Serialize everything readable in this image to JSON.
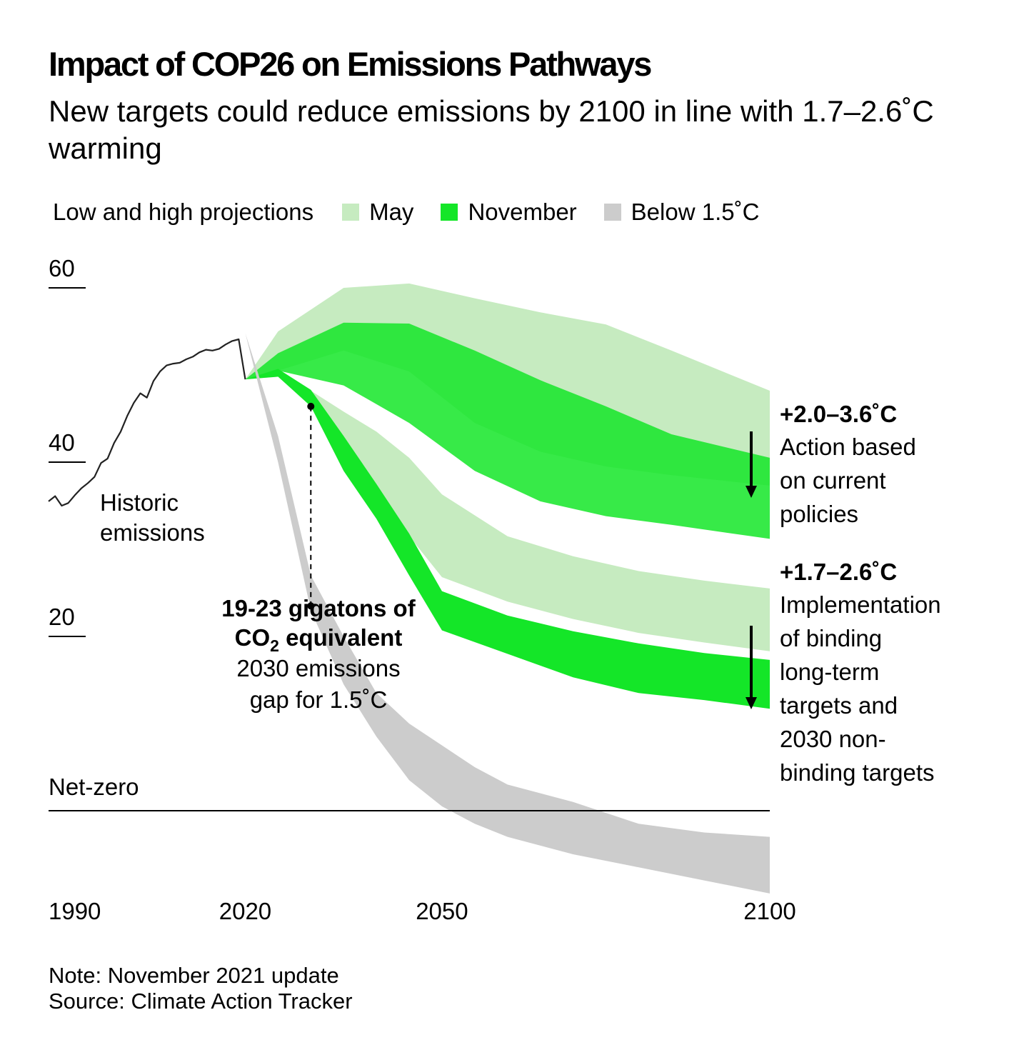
{
  "chart_data": {
    "type": "area",
    "title": "Impact of COP26 on Emissions Pathways",
    "subtitle": "New targets could reduce emissions by 2100 in line with 1.7–2.6˚C warming",
    "legend": {
      "title": "Low and high projections",
      "items": [
        {
          "name": "May",
          "color": "#c6ebc0"
        },
        {
          "name": "November",
          "color": "#14e628"
        },
        {
          "name": "Below 1.5˚C",
          "color": "#cccccc"
        }
      ]
    },
    "y_ticks": [
      "60",
      "40",
      "20"
    ],
    "y_tick_values": [
      60,
      40,
      20
    ],
    "x_ticks": [
      "1990",
      "2020",
      "2050",
      "2100"
    ],
    "x_tick_values": [
      1990,
      2020,
      2050,
      2100
    ],
    "xlim": [
      1990,
      2100
    ],
    "ylim": [
      -10,
      60
    ],
    "unit": "Gt CO2e",
    "net_zero_label": "Net-zero",
    "historic": {
      "label_line1": "Historic",
      "label_line2": "emissions",
      "x": [
        1990,
        1991,
        1992,
        1993,
        1994,
        1995,
        1996,
        1997,
        1998,
        1999,
        2000,
        2001,
        2002,
        2003,
        2004,
        2005,
        2006,
        2007,
        2008,
        2009,
        2010,
        2011,
        2012,
        2013,
        2014,
        2015,
        2016,
        2017,
        2018,
        2019,
        2020
      ],
      "y": [
        35.5,
        36.1,
        35.0,
        35.3,
        36.2,
        37.0,
        37.6,
        38.3,
        39.9,
        40.4,
        42.2,
        43.5,
        45.3,
        46.8,
        47.9,
        47.4,
        49.3,
        50.4,
        51.1,
        51.3,
        51.4,
        51.8,
        52.1,
        52.6,
        52.9,
        52.8,
        53.0,
        53.5,
        53.9,
        54.1,
        49.5
      ]
    },
    "bands": [
      {
        "name": "May",
        "scenario": "current policies",
        "color": "#c6ebc0",
        "x": [
          2020,
          2025,
          2035,
          2045,
          2055,
          2065,
          2075,
          2085,
          2100
        ],
        "upper": [
          49.5,
          55,
          60,
          60.5,
          58.8,
          57.2,
          55.8,
          52.8,
          48.2
        ],
        "lower": [
          49.5,
          50.5,
          52.8,
          50.4,
          44.5,
          41.2,
          39.5,
          38.5,
          37.3
        ]
      },
      {
        "name": "November",
        "scenario": "current policies",
        "color": "#14e628",
        "opacity": 0.85,
        "x": [
          2020,
          2025,
          2035,
          2045,
          2055,
          2065,
          2075,
          2085,
          2100
        ],
        "upper": [
          49.5,
          52.5,
          56,
          55.9,
          52.8,
          49.4,
          46.4,
          43.2,
          40.5
        ],
        "lower": [
          49.5,
          50.5,
          48.8,
          44.5,
          39.0,
          35.5,
          33.8,
          32.8,
          31.2
        ]
      },
      {
        "name": "May",
        "scenario": "binding long-term and 2030 non-binding targets",
        "color": "#c6ebc0",
        "x": [
          2020,
          2025,
          2030,
          2035,
          2040,
          2045,
          2050,
          2060,
          2070,
          2080,
          2090,
          2100
        ],
        "upper": [
          49.5,
          50.5,
          48.2,
          45.8,
          43.5,
          40.5,
          36.3,
          31.5,
          29.2,
          27.5,
          26.4,
          25.5
        ],
        "lower": [
          49.5,
          49.8,
          46.5,
          42.0,
          37.0,
          31.5,
          26.8,
          24.0,
          22.0,
          20.4,
          19.3,
          18.3
        ]
      },
      {
        "name": "November",
        "scenario": "binding long-term and 2030 non-binding targets",
        "color": "#14e628",
        "x": [
          2020,
          2025,
          2030,
          2035,
          2040,
          2045,
          2050,
          2060,
          2070,
          2080,
          2090,
          2100
        ],
        "upper": [
          49.5,
          50.7,
          48.3,
          43.0,
          37.5,
          31.8,
          25.2,
          22.4,
          20.6,
          19.2,
          18.1,
          17.3
        ],
        "lower": [
          49.5,
          49.8,
          46.4,
          39.0,
          33.5,
          27.0,
          20.7,
          18.0,
          15.3,
          13.5,
          12.7,
          11.7
        ]
      },
      {
        "name": "Below 1.5˚C",
        "scenario": "1.5˚C compatible pathway",
        "color": "#cccccc",
        "x": [
          2020,
          2025,
          2030,
          2035,
          2040,
          2045,
          2050,
          2055,
          2060,
          2070,
          2080,
          2090,
          2100
        ],
        "upper": [
          54.8,
          43.0,
          27.0,
          20.0,
          13.5,
          10.0,
          7.5,
          5.0,
          3.0,
          1.0,
          -1.5,
          -2.5,
          -3.0
        ],
        "lower": [
          54.8,
          40.0,
          23.0,
          14.5,
          8.5,
          3.5,
          0.5,
          -1.5,
          -3.0,
          -5.0,
          -6.5,
          -8.0,
          -9.5
        ]
      }
    ],
    "annotations": {
      "gap": {
        "bold_line1": "19-23 gigatons of",
        "co2_prefix": "CO",
        "co2_sub": "2",
        "co2_suffix": " equivalent",
        "line3": "2030 emissions",
        "line4": "gap for 1.5˚C",
        "year": 2030,
        "from": 46.4,
        "to": 23.5
      },
      "current_policies": {
        "temp": "+2.0–3.6˚C",
        "lines": [
          "Action based",
          "on current",
          "policies"
        ]
      },
      "targets": {
        "temp": "+1.7–2.6˚C",
        "lines": [
          "Implementation",
          "of binding",
          "long-term",
          "targets and",
          "2030 non-",
          "binding targets"
        ]
      }
    },
    "note": "Note: November 2021 update",
    "source": "Source: Climate Action Tracker"
  }
}
